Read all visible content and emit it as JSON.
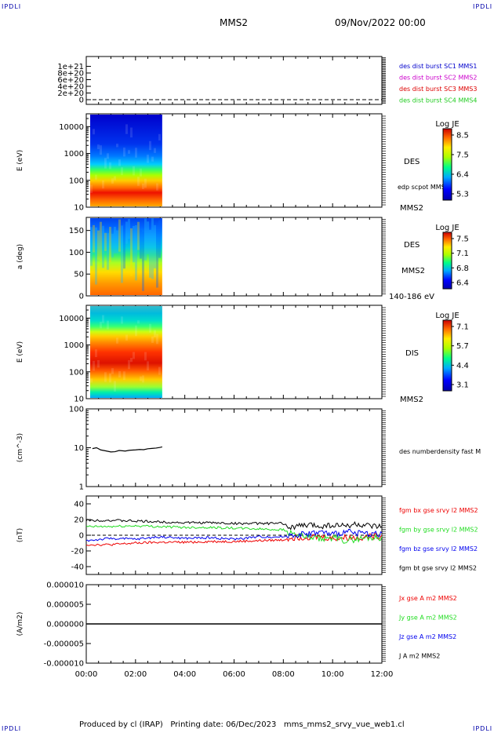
{
  "header": {
    "corner_tl": "IPDLI",
    "corner_tr": "IPDLI",
    "corner_bl": "IPDLI",
    "corner_br": "IPDLI",
    "spacecraft": "MMS2",
    "datetime": "09/Nov/2022 00:00"
  },
  "footer": {
    "text": "Produced by cl (IRAP)   Printing date: 06/Dec/2023   mms_mms2_srvy_vue_web1.cl"
  },
  "colors": {
    "mms1": "#0000cc",
    "mms2": "#cc00cc",
    "mms3": "#dd0000",
    "mms4": "#22cc22",
    "bx": "#ee0000",
    "by": "#22dd22",
    "bz": "#0000ee",
    "bt": "#000000"
  },
  "chart_data": [
    {
      "type": "line",
      "panel": "des-dist",
      "ylabel": "",
      "ylim": [
        0,
        1.2e+21
      ],
      "yticks": [
        "1e+21",
        "8e+20",
        "6e+20",
        "4e+20",
        "2e+20",
        "0"
      ],
      "reference_line": 0,
      "series": [
        {
          "name": "des dist burst SC1 MMS1",
          "values": []
        },
        {
          "name": "des dist burst SC2 MMS2",
          "values": []
        },
        {
          "name": "des dist burst SC3 MMS3",
          "values": []
        },
        {
          "name": "des dist burst SC4 MMS4",
          "values": []
        }
      ]
    },
    {
      "type": "heatmap",
      "panel": "des-energy",
      "ylabel": "E (eV)",
      "yscale": "log",
      "ylim": [
        10,
        30000
      ],
      "yticks": [
        "10000",
        "1000",
        "100",
        "10"
      ],
      "data_x_range": [
        "00:00",
        "03:05"
      ],
      "side_labels": [
        "DES",
        "edp scpot MMS2",
        "MMS2"
      ],
      "colorbar": {
        "title": "Log JE",
        "ticks": [
          "8.5",
          "7.5",
          "6.4",
          "5.3"
        ]
      }
    },
    {
      "type": "heatmap",
      "panel": "des-pitch",
      "ylabel": "a (deg)",
      "ylim": [
        0,
        180
      ],
      "yticks": [
        "150",
        "100",
        "50",
        "0"
      ],
      "data_x_range": [
        "00:00",
        "03:05"
      ],
      "side_labels": [
        "DES",
        "MMS2",
        "140-186 eV"
      ],
      "colorbar": {
        "title": "Log JE",
        "ticks": [
          "7.5",
          "7.1",
          "6.8",
          "6.4"
        ]
      }
    },
    {
      "type": "heatmap",
      "panel": "dis-energy",
      "ylabel": "E (eV)",
      "yscale": "log",
      "ylim": [
        10,
        30000
      ],
      "yticks": [
        "10000",
        "1000",
        "100",
        "10"
      ],
      "data_x_range": [
        "00:00",
        "03:05"
      ],
      "side_labels": [
        "DIS",
        "MMS2"
      ],
      "colorbar": {
        "title": "Log JE",
        "ticks": [
          "7.1",
          "5.7",
          "4.4",
          "3.1"
        ]
      }
    },
    {
      "type": "line",
      "panel": "density",
      "ylabel": "(cm^-3)",
      "yscale": "log",
      "ylim": [
        1,
        100
      ],
      "yticks": [
        "100",
        "10",
        "1"
      ],
      "series": [
        {
          "name": "des numberdensity fast M",
          "x": [
            "00:15",
            "00:25",
            "00:35",
            "00:45",
            "01:00",
            "01:10",
            "01:20",
            "01:35",
            "01:45",
            "02:00",
            "02:10",
            "02:20",
            "02:30",
            "02:40",
            "02:50",
            "03:00",
            "03:05"
          ],
          "values": [
            9.5,
            10.0,
            8.8,
            8.4,
            7.8,
            7.9,
            8.5,
            8.2,
            8.6,
            8.8,
            9.0,
            8.9,
            9.4,
            9.6,
            9.8,
            10.2,
            10.5
          ]
        }
      ]
    },
    {
      "type": "line",
      "panel": "fgm",
      "ylabel": "(nT)",
      "ylim": [
        -50,
        50
      ],
      "yticks": [
        "40",
        "20",
        "0",
        "-20",
        "-40"
      ],
      "reference_line": 0,
      "x": [
        "00:00",
        "01:00",
        "02:00",
        "03:00",
        "04:00",
        "05:00",
        "06:00",
        "07:00",
        "08:00",
        "08:15",
        "09:00",
        "09:30",
        "10:00",
        "10:30",
        "11:00",
        "11:30",
        "12:00"
      ],
      "series": [
        {
          "name": "fgm bx gse srvy l2 MMS2",
          "values": [
            -12,
            -12,
            -10,
            -9,
            -9,
            -8,
            -8,
            -7,
            -6,
            -3,
            -2,
            -2,
            -4,
            -3,
            -3,
            -2,
            -1
          ]
        },
        {
          "name": "fgm by gse srvy l2 MMS2",
          "values": [
            11,
            11,
            12,
            11,
            10,
            10,
            9,
            8,
            7,
            3,
            -3,
            -5,
            -3,
            -7,
            -5,
            -3,
            -3
          ]
        },
        {
          "name": "fgm bz gse srvy l2 MMS2",
          "values": [
            -7,
            -4,
            -5,
            -2,
            -4,
            -3,
            -5,
            -2,
            -2,
            0,
            2,
            4,
            1,
            4,
            3,
            2,
            2
          ]
        },
        {
          "name": "fgm bt gse srvy l2 MMS2",
          "values": [
            19,
            19,
            18,
            17,
            16,
            16,
            15,
            15,
            15,
            10,
            13,
            12,
            13,
            12,
            14,
            11,
            10
          ]
        }
      ]
    },
    {
      "type": "line",
      "panel": "current",
      "ylabel": "(A/m2)",
      "ylim": [
        -1e-05,
        1e-05
      ],
      "yticks": [
        "0.000010",
        "0.000005",
        "0.000000",
        "-0.000005",
        "-0.000010"
      ],
      "xlabel": "",
      "xticks": [
        "00:00",
        "02:00",
        "04:00",
        "06:00",
        "08:00",
        "10:00",
        "12:00"
      ],
      "series": [
        {
          "name": "Jx gse A m2 MMS2",
          "values": [
            0,
            0
          ]
        },
        {
          "name": "Jy gse A m2 MMS2",
          "values": [
            0,
            0
          ]
        },
        {
          "name": "Jz gse A m2 MMS2",
          "values": [
            0,
            0
          ]
        },
        {
          "name": "J A m2 MMS2",
          "values": [
            0,
            0
          ]
        }
      ]
    }
  ]
}
